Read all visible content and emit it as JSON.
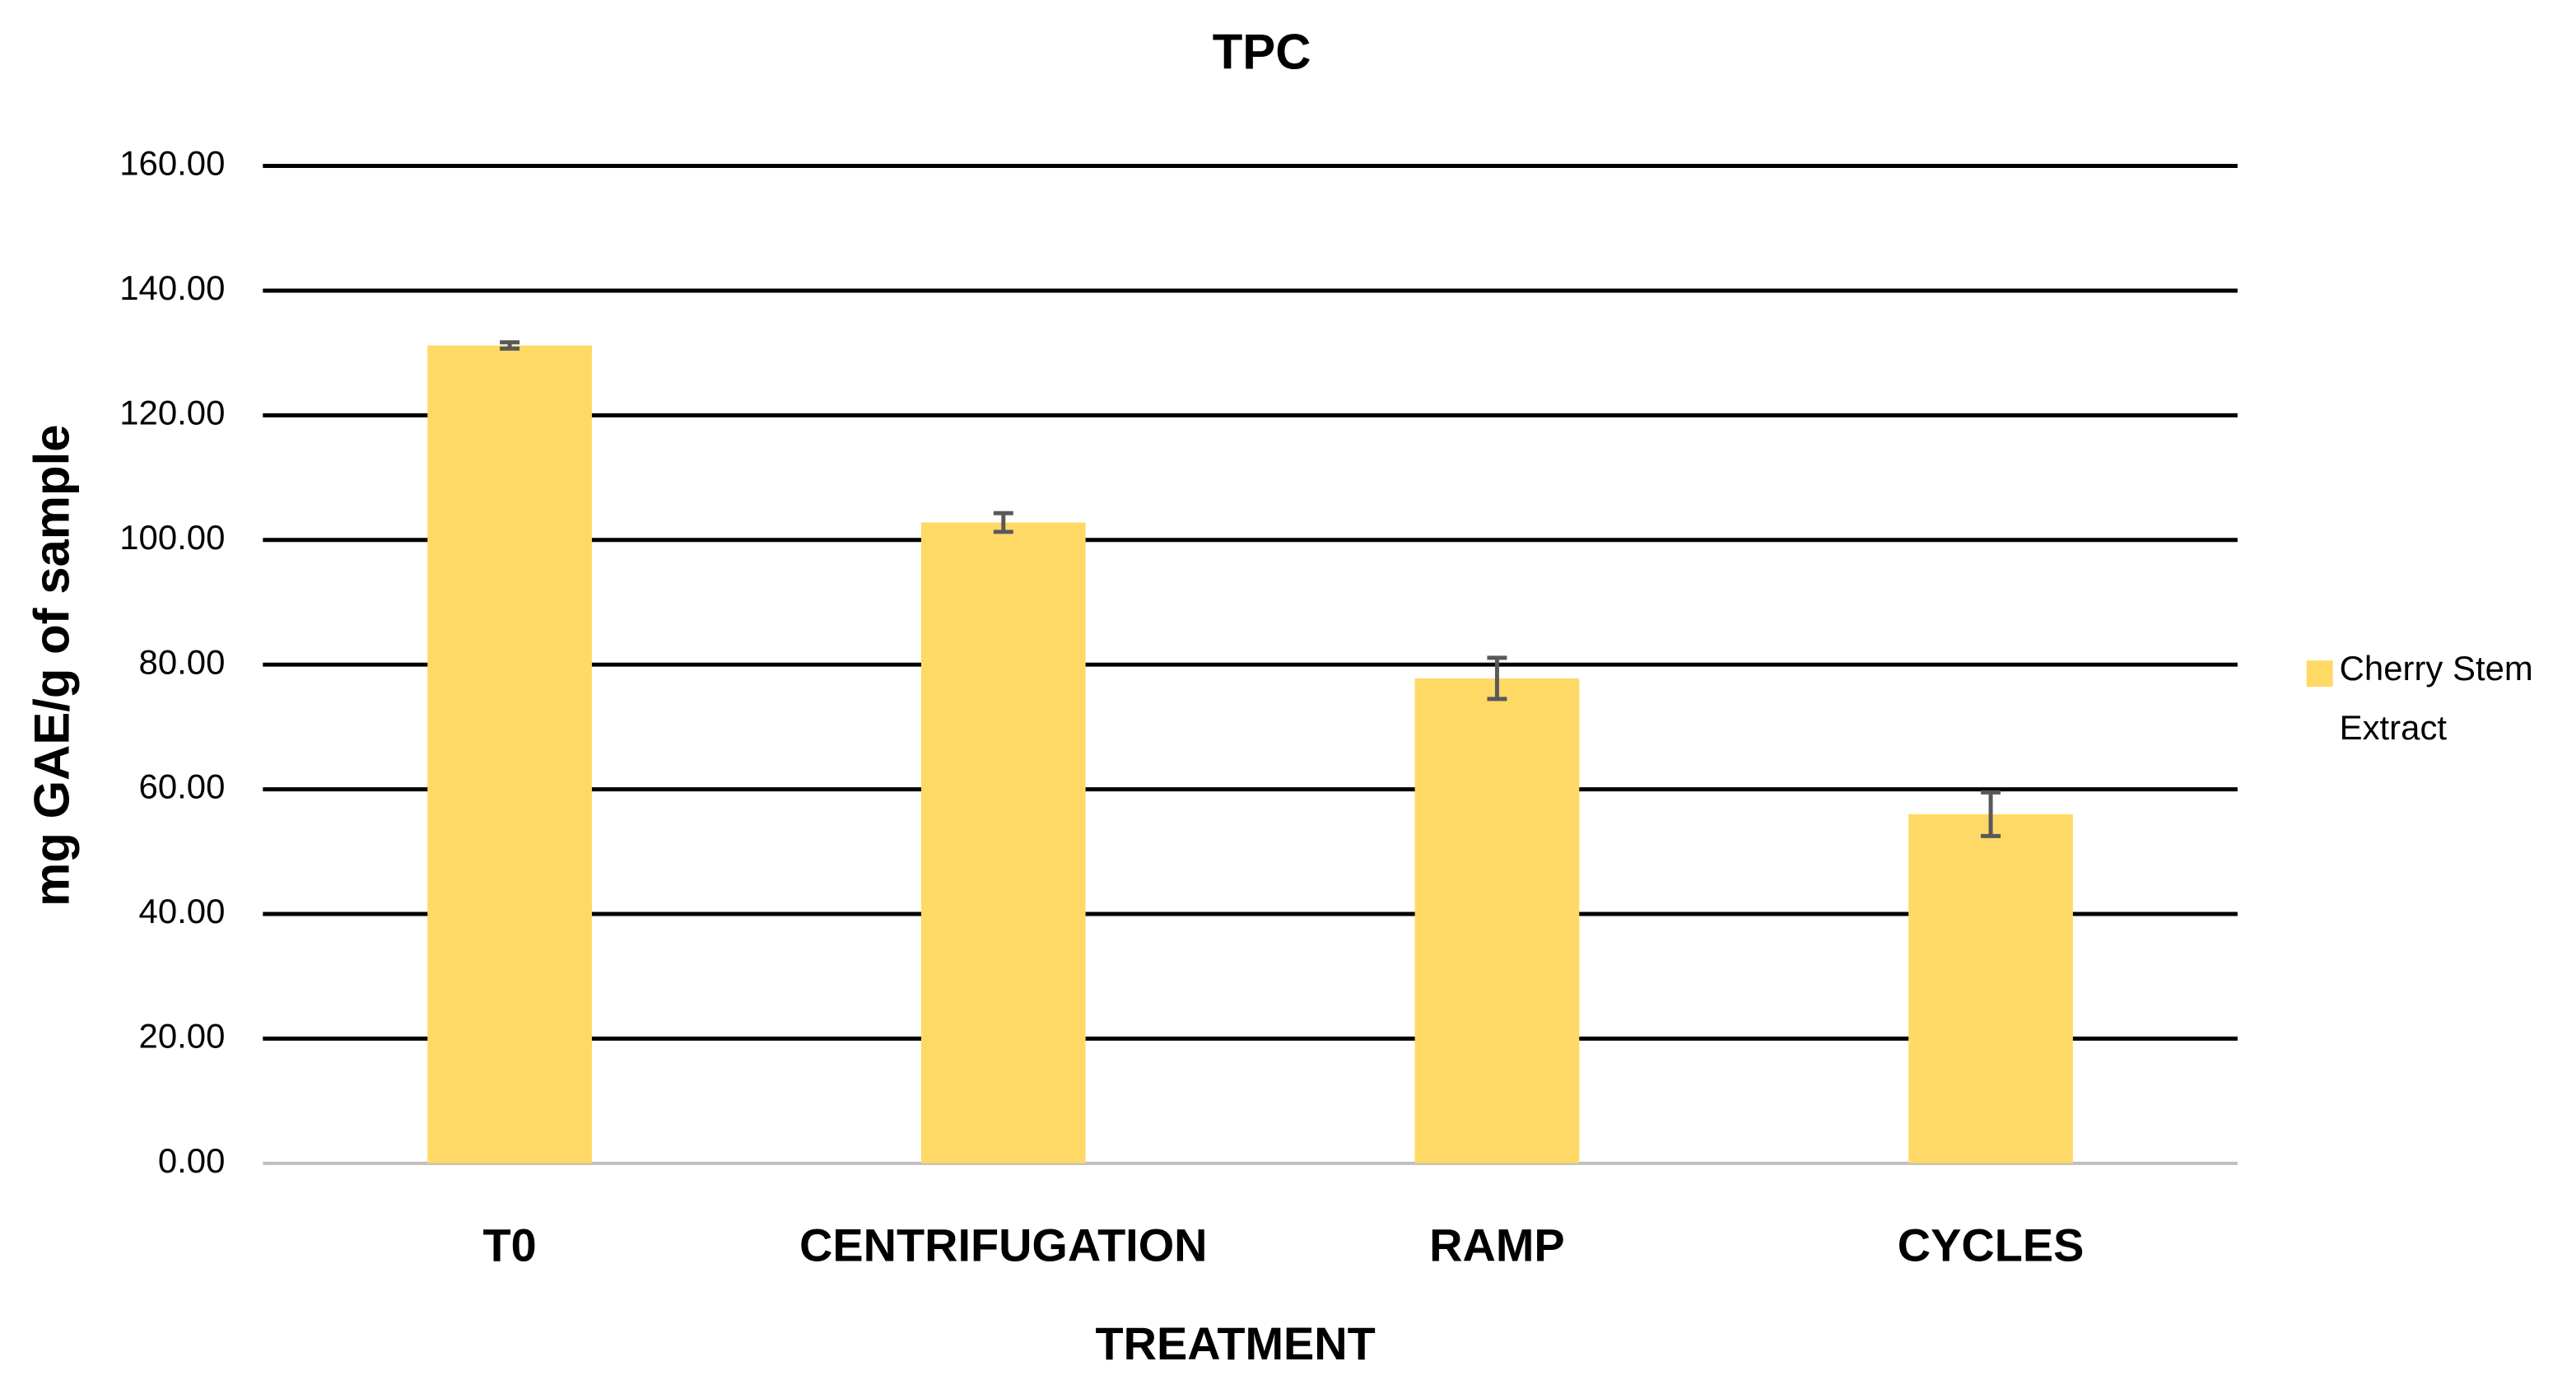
{
  "chart_data": {
    "type": "bar",
    "title": "TPC",
    "x_label": "TREATMENT",
    "y_label": "mg GAE/g of sample",
    "categories": [
      "T0",
      "CENTRIFUGATION",
      "RAMP",
      "CYCLES"
    ],
    "series": [
      {
        "name": "Cherry Stem Extract",
        "color": "#ffd966",
        "values": [
          131.2,
          102.8,
          77.8,
          56.0
        ],
        "errors": [
          0.5,
          1.5,
          3.3,
          3.5
        ]
      }
    ],
    "ylim": [
      0,
      160
    ],
    "yticks": [
      {
        "value": 0,
        "label": "0.00"
      },
      {
        "value": 20,
        "label": "20.00"
      },
      {
        "value": 40,
        "label": "40.00"
      },
      {
        "value": 60,
        "label": "60.00"
      },
      {
        "value": 80,
        "label": "80.00"
      },
      {
        "value": 100,
        "label": "100.00"
      },
      {
        "value": 120,
        "label": "120.00"
      },
      {
        "value": 140,
        "label": "140.00"
      },
      {
        "value": 160,
        "label": "160.00"
      }
    ],
    "grid": true,
    "legend": "right"
  }
}
